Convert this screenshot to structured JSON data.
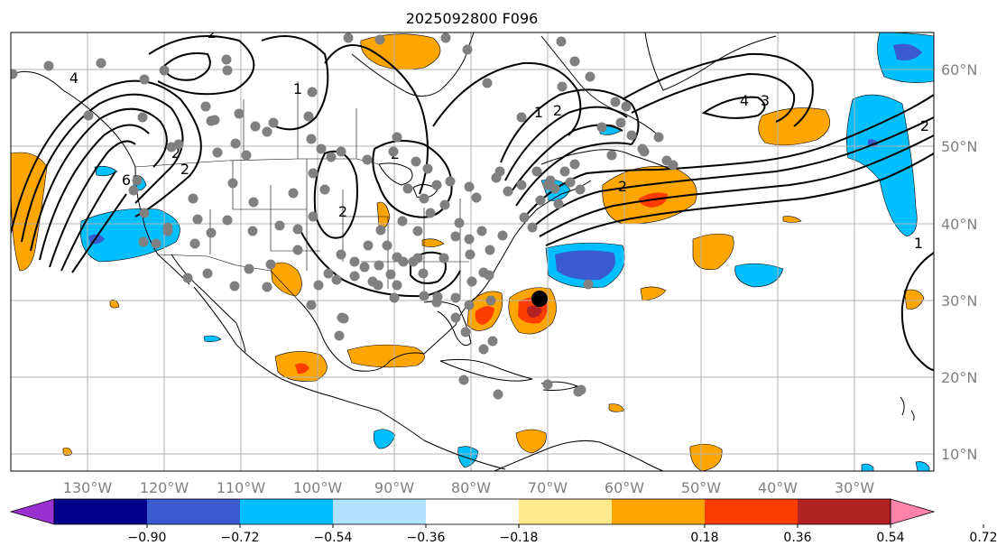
{
  "title": "2025092800 F096",
  "lon_ticks": [
    "130°W",
    "120°W",
    "110°W",
    "100°W",
    "90°W",
    "80°W",
    "70°W",
    "60°W",
    "50°W",
    "40°W",
    "30°W"
  ],
  "lat_ticks": [
    "60°N",
    "50°N",
    "40°N",
    "30°N",
    "20°N",
    "10°N"
  ],
  "colorbar": {
    "ticks": [
      "−0.90",
      "−0.72",
      "−0.54",
      "−0.36",
      "−0.18",
      "0.18",
      "0.36",
      "0.54",
      "0.72",
      "0.90"
    ],
    "colors": [
      "#9b30d0",
      "#00008b",
      "#3a5bd0",
      "#00bfff",
      "#b0e2ff",
      "#ffffff",
      "#ffe98a",
      "#ffa500",
      "#ff3c00",
      "#b22222",
      "#ff82ab"
    ]
  },
  "contour_labels": [
    "2",
    "2",
    "2",
    "2",
    "1",
    "1",
    "2",
    "3",
    "4",
    "6",
    "4",
    "2",
    "2",
    "2",
    "1"
  ],
  "storm_marker": "tropical-cyclone-center"
}
